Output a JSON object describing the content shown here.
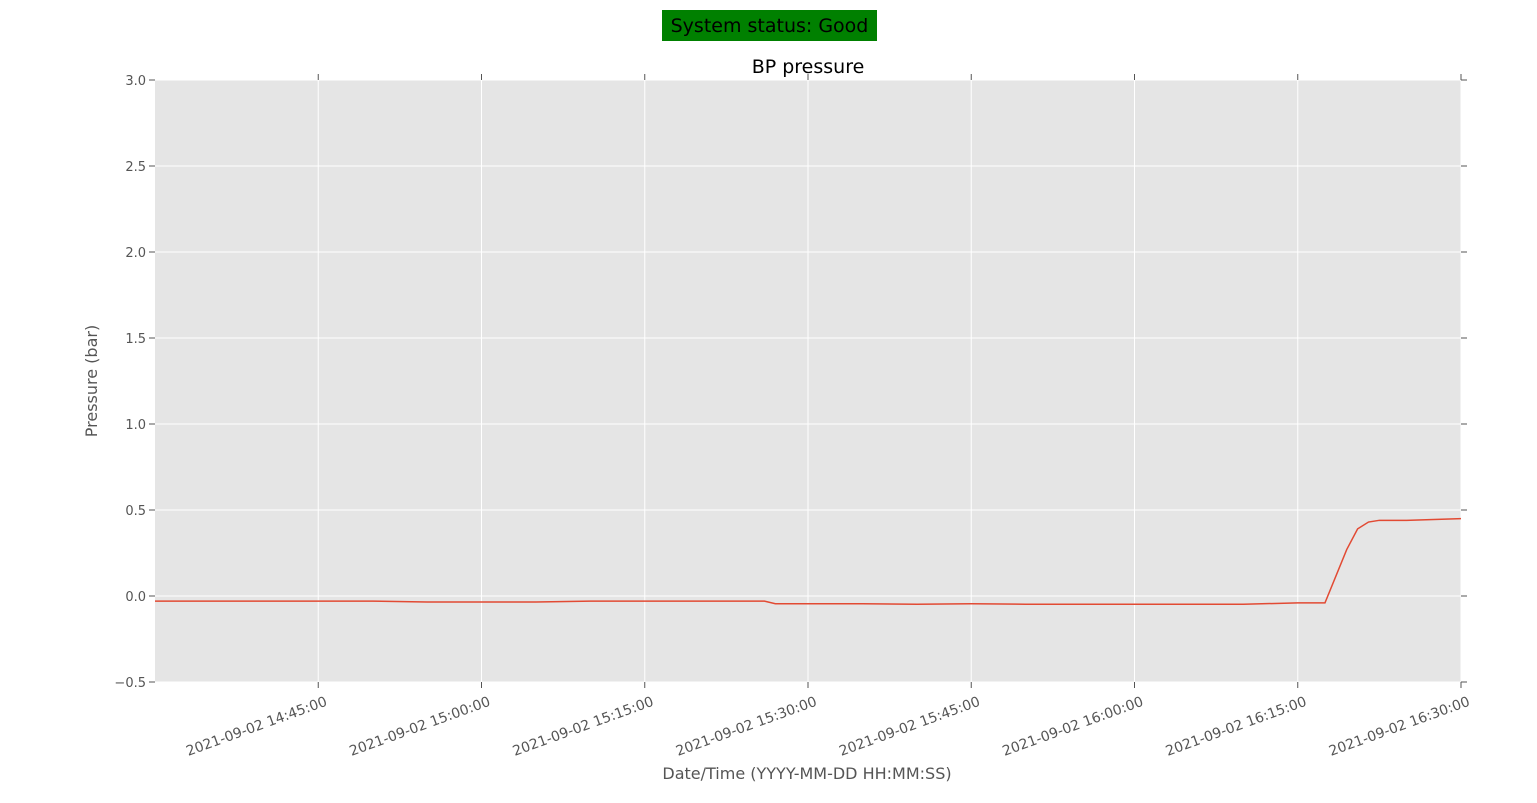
{
  "status": {
    "label": "System status: Good",
    "color": "#008000"
  },
  "chart_data": {
    "type": "line",
    "title": "BP pressure",
    "xlabel": "Date/Time (YYYY-MM-DD HH:MM:SS)",
    "ylabel": "Pressure (bar)",
    "xlim": [
      "2021-09-02 14:30:00",
      "2021-09-02 16:30:00"
    ],
    "ylim": [
      -0.5,
      3.0
    ],
    "yticks": [
      "−0.5",
      "0.0",
      "0.5",
      "1.0",
      "1.5",
      "2.0",
      "2.5",
      "3.0"
    ],
    "xticks": [
      "2021-09-02 14:45:00",
      "2021-09-02 15:00:00",
      "2021-09-02 15:15:00",
      "2021-09-02 15:30:00",
      "2021-09-02 15:45:00",
      "2021-09-02 16:00:00",
      "2021-09-02 16:15:00",
      "2021-09-02 16:30:00"
    ],
    "grid": true,
    "background": "#e5e5e5",
    "line_color": "#e24a33",
    "series": [
      {
        "x": [
          "2021-09-02 14:30:00",
          "2021-09-02 14:35:00",
          "2021-09-02 14:40:00",
          "2021-09-02 14:45:00",
          "2021-09-02 14:50:00",
          "2021-09-02 14:55:00",
          "2021-09-02 15:00:00",
          "2021-09-02 15:05:00",
          "2021-09-02 15:10:00",
          "2021-09-02 15:15:00",
          "2021-09-02 15:20:00",
          "2021-09-02 15:26:00",
          "2021-09-02 15:27:00",
          "2021-09-02 15:30:00",
          "2021-09-02 15:35:00",
          "2021-09-02 15:40:00",
          "2021-09-02 15:45:00",
          "2021-09-02 15:50:00",
          "2021-09-02 15:55:00",
          "2021-09-02 16:00:00",
          "2021-09-02 16:05:00",
          "2021-09-02 16:10:00",
          "2021-09-02 16:15:00",
          "2021-09-02 16:17:30",
          "2021-09-02 16:19:30",
          "2021-09-02 16:20:30",
          "2021-09-02 16:21:30",
          "2021-09-02 16:22:30",
          "2021-09-02 16:25:00",
          "2021-09-02 16:30:00"
        ],
        "y": [
          -0.03,
          -0.03,
          -0.03,
          -0.03,
          -0.03,
          -0.035,
          -0.035,
          -0.035,
          -0.03,
          -0.03,
          -0.03,
          -0.03,
          -0.045,
          -0.045,
          -0.045,
          -0.048,
          -0.045,
          -0.048,
          -0.048,
          -0.048,
          -0.048,
          -0.048,
          -0.04,
          -0.04,
          0.27,
          0.39,
          0.43,
          0.44,
          0.44,
          0.45
        ]
      }
    ]
  }
}
